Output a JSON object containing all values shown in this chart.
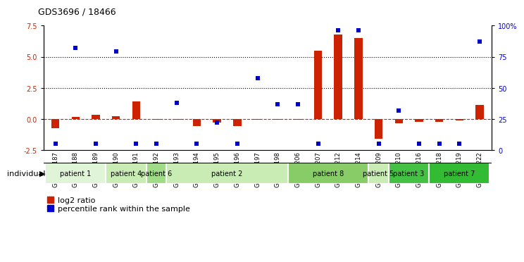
{
  "title": "GDS3696 / 18466",
  "samples": [
    "GSM280187",
    "GSM280188",
    "GSM280189",
    "GSM280190",
    "GSM280191",
    "GSM280192",
    "GSM280193",
    "GSM280194",
    "GSM280195",
    "GSM280196",
    "GSM280197",
    "GSM280198",
    "GSM280206",
    "GSM280207",
    "GSM280212",
    "GSM280214",
    "GSM280209",
    "GSM280210",
    "GSM280216",
    "GSM280218",
    "GSM280219",
    "GSM280222"
  ],
  "log2_ratio": [
    -0.75,
    0.2,
    0.35,
    0.25,
    1.4,
    -0.08,
    -0.05,
    -0.55,
    -0.3,
    -0.55,
    -0.08,
    -0.08,
    -0.08,
    5.5,
    6.8,
    6.5,
    -1.6,
    -0.35,
    -0.2,
    -0.25,
    -0.12,
    1.15
  ],
  "percentile_rank": [
    5,
    82,
    5,
    79,
    5,
    5,
    38,
    5,
    22,
    5,
    58,
    37,
    37,
    5,
    96,
    96,
    5,
    32,
    5,
    5,
    5,
    87
  ],
  "patients": [
    {
      "label": "patient 1",
      "start": 0,
      "end": 3,
      "color": "#e0f4d8"
    },
    {
      "label": "patient 4",
      "start": 3,
      "end": 5,
      "color": "#c8ecb4"
    },
    {
      "label": "patient 6",
      "start": 5,
      "end": 6,
      "color": "#a0dc88"
    },
    {
      "label": "patient 2",
      "start": 6,
      "end": 12,
      "color": "#c8ecb4"
    },
    {
      "label": "patient 8",
      "start": 12,
      "end": 16,
      "color": "#88cc68"
    },
    {
      "label": "patient 5",
      "start": 16,
      "end": 17,
      "color": "#c8ecb4"
    },
    {
      "label": "patient 3",
      "start": 17,
      "end": 19,
      "color": "#44c044"
    },
    {
      "label": "patient 7",
      "start": 19,
      "end": 22,
      "color": "#33bb33"
    }
  ],
  "ylim_left": [
    -2.5,
    7.5
  ],
  "ylim_right": [
    0,
    100
  ],
  "yticks_left": [
    -2.5,
    0.0,
    2.5,
    5.0,
    7.5
  ],
  "yticks_right": [
    0,
    25,
    50,
    75,
    100
  ],
  "ytick_labels_right": [
    "0",
    "25",
    "50",
    "75",
    "100%"
  ],
  "hlines": [
    2.5,
    5.0
  ],
  "bar_color_log2": "#cc2200",
  "bar_color_pct": "#0000cc",
  "zero_line_color": "#cc2200",
  "bar_width": 0.4
}
